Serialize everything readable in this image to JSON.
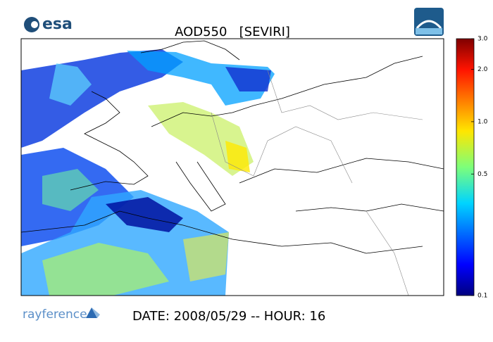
{
  "header": {
    "logo": "esa",
    "title": "AOD550   [SEVIRI]"
  },
  "colorbar": {
    "scale": "log",
    "lim": [
      0.1,
      3
    ],
    "ticks": [
      {
        "value": 3,
        "label": "3.0"
      },
      {
        "value": 2,
        "label": "2.0"
      },
      {
        "value": 1,
        "label": "1.0"
      },
      0.5,
      0.1
    ]
  },
  "footer": {
    "logo": "rayference",
    "date": "DATE: 2008/05/29 -- HOUR: 16"
  }
}
